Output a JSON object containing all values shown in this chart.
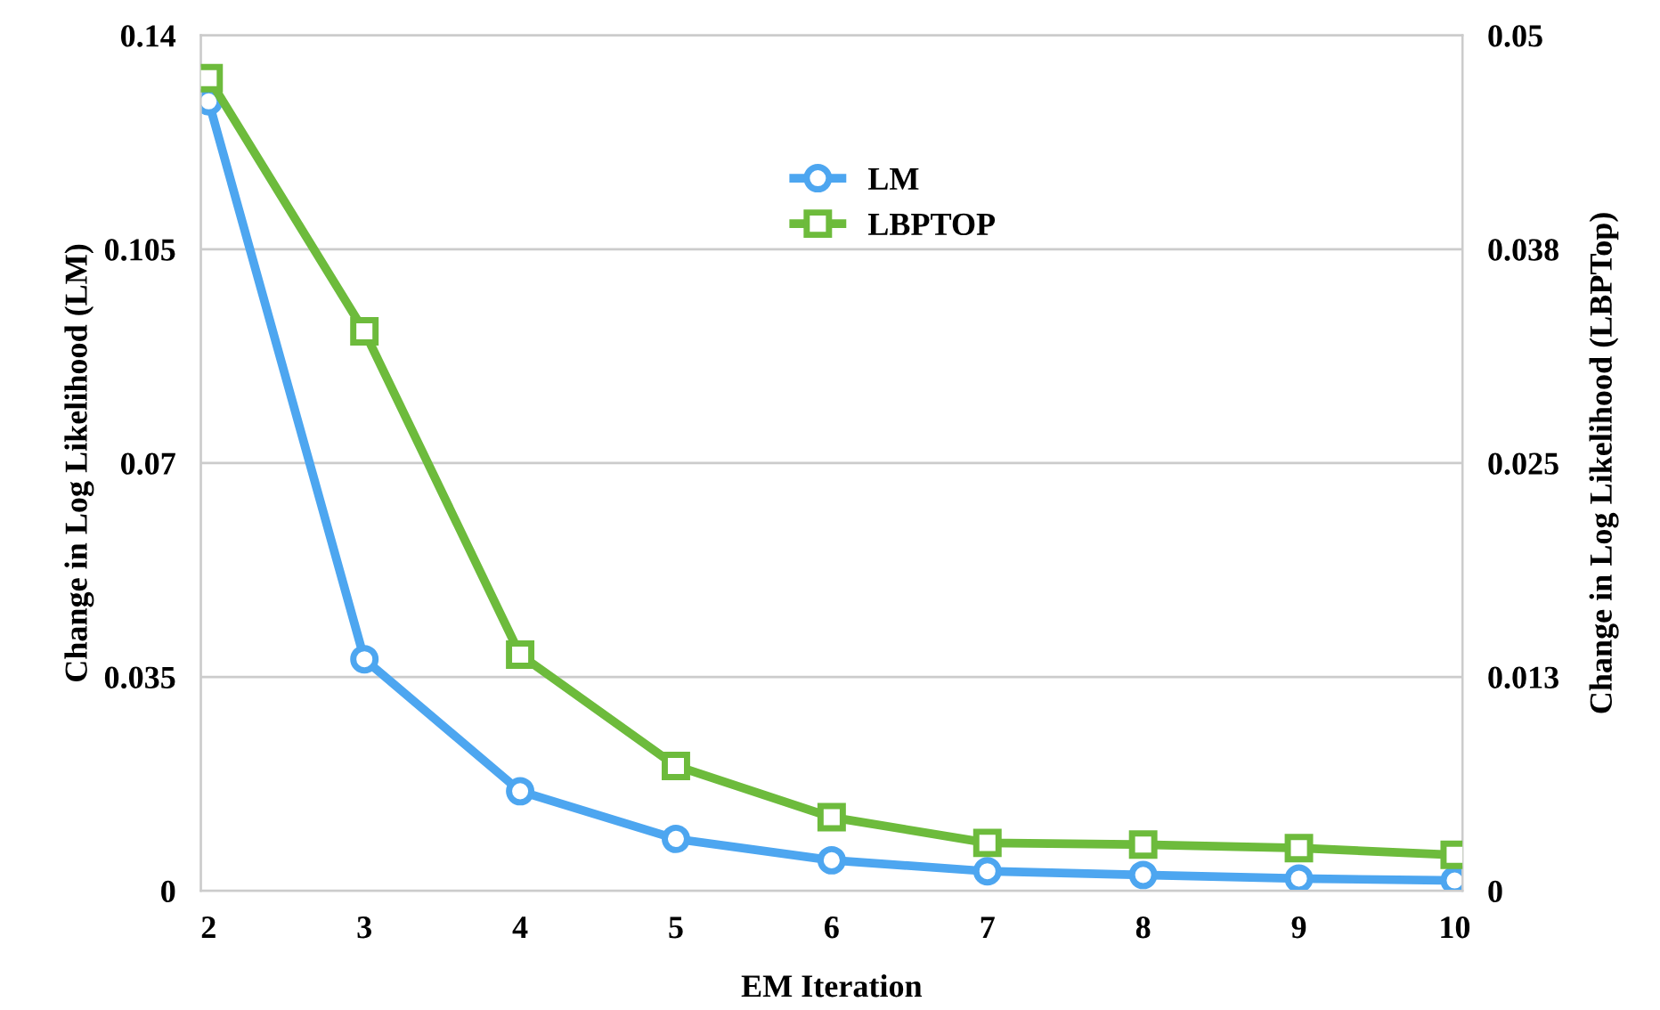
{
  "chart_data": {
    "type": "line",
    "xlabel": "EM Iteration",
    "ylabel": "Change in Log Likelihood (LM)",
    "y2label": "Change in Log Likelihood (LBPTop)",
    "categories": [
      "2",
      "3",
      "4",
      "5",
      "6",
      "7",
      "8",
      "9",
      "10"
    ],
    "series": [
      {
        "name": "LM",
        "color": "#4da6f0",
        "marker": "circle",
        "values": [
          0.1292,
          0.0379,
          0.0163,
          0.0085,
          0.005,
          0.0032,
          0.0026,
          0.002,
          0.0017
        ]
      },
      {
        "name": "LBPTOP",
        "color": "#6dbb3c",
        "marker": "square",
        "axis": "y2",
        "values": [
          0.0475,
          0.0327,
          0.0138,
          0.0073,
          0.0043,
          0.0028,
          0.0027,
          0.0025,
          0.0021
        ]
      }
    ],
    "ylim": [
      0,
      0.14
    ],
    "yticks": [
      0,
      0.035,
      0.07,
      0.105,
      0.14
    ],
    "y2lim": [
      0,
      0.05
    ],
    "y2ticks": [
      0,
      {
        "value": 0.0125,
        "label": "0.013"
      },
      0.025,
      {
        "value": 0.0375,
        "label": "0.038"
      },
      0.05
    ],
    "grid": "y",
    "legend": "top",
    "line_style": "solid"
  }
}
